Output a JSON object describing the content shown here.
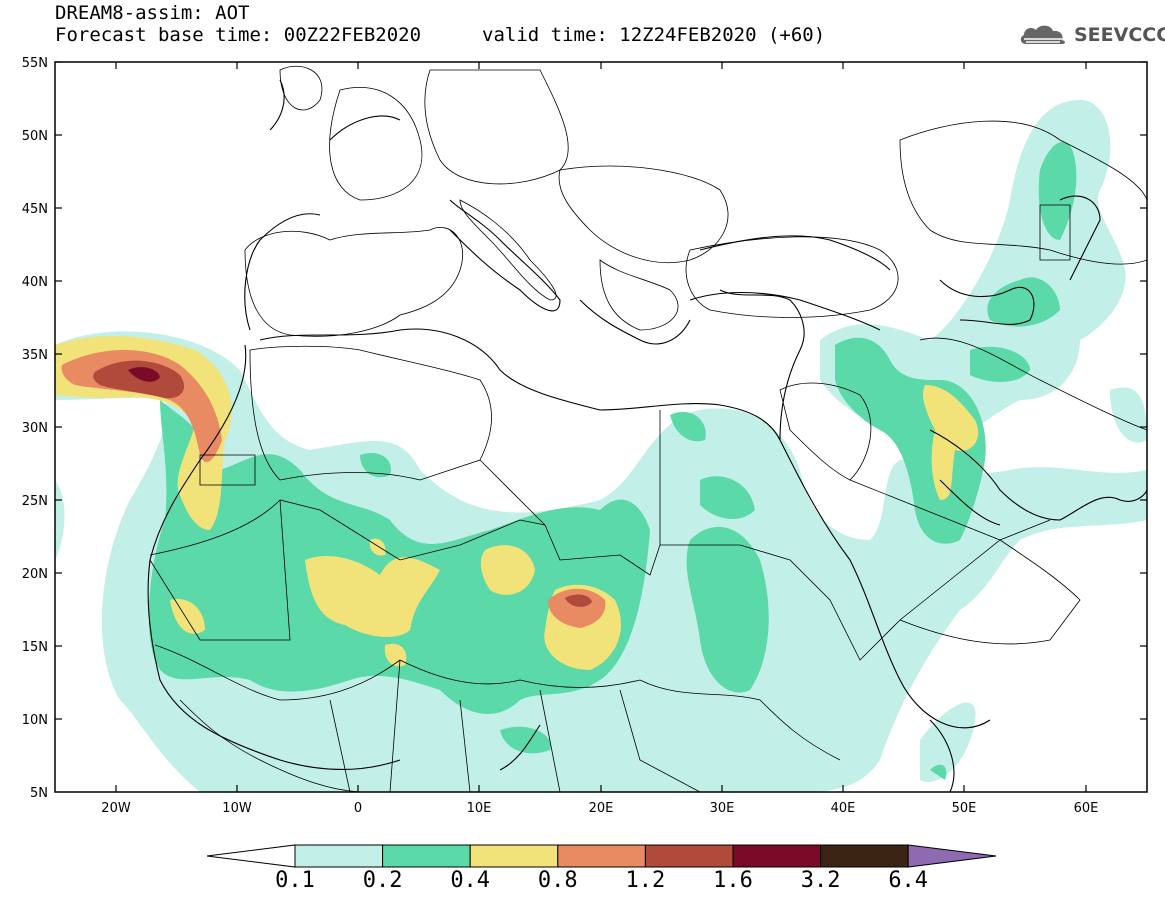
{
  "title": {
    "line1": "DREAM8-assim: AOT",
    "line2": "Forecast base time: 00Z22FEB2020",
    "valid": "valid time: 12Z24FEB2020 (+60)"
  },
  "logo": {
    "text": "SEEVCCC",
    "icon": "cloud-icon"
  },
  "map": {
    "lat_ticks": [
      "55N",
      "50N",
      "45N",
      "40N",
      "35N",
      "30N",
      "25N",
      "20N",
      "15N",
      "10N",
      "5N"
    ],
    "lon_ticks": [
      "20W",
      "10W",
      "0",
      "10E",
      "20E",
      "30E",
      "40E",
      "50E",
      "60E"
    ]
  },
  "colorbar": {
    "labels": [
      "0.1",
      "0.2",
      "0.4",
      "0.8",
      "1.2",
      "1.6",
      "3.2",
      "6.4"
    ],
    "colors": [
      "#ffffff",
      "#c2efe8",
      "#5cd9a8",
      "#f1e27a",
      "#e88a62",
      "#b04a3a",
      "#7a0a28",
      "#3b2414",
      "#8e6ab0"
    ]
  }
}
